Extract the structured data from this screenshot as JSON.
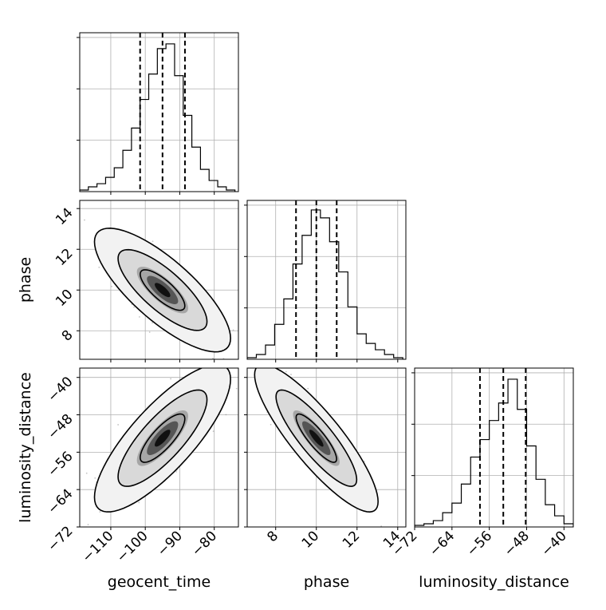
{
  "chart_data": {
    "type": "corner",
    "parameters": [
      "geocent_time",
      "phase",
      "luminosity_distance"
    ],
    "axis_labels": {
      "x": [
        "geocent_time",
        "phase",
        "luminosity_distance"
      ],
      "y": [
        "",
        "phase",
        "luminosity_distance"
      ]
    },
    "ranges": {
      "geocent_time": [
        -119,
        -73
      ],
      "phase": [
        6.6,
        14.4
      ],
      "luminosity_distance": [
        -72,
        -38
      ]
    },
    "ticks": {
      "geocent_time": [
        -110,
        -100,
        -90,
        -80
      ],
      "phase": [
        8,
        10,
        12,
        14
      ],
      "luminosity_distance": [
        -72,
        -64,
        -56,
        -48,
        -40
      ]
    },
    "tick_labels": {
      "geocent_time": [
        "−110",
        "−100",
        "−90",
        "−80"
      ],
      "phase": [
        "8",
        "10",
        "12",
        "14"
      ],
      "luminosity_distance": [
        "−72",
        "−64",
        "−56",
        "−48",
        "−40"
      ]
    },
    "quantiles": {
      "geocent_time": [
        -101.5,
        -95,
        -88.5
      ],
      "phase": [
        9.0,
        10.0,
        11.0
      ],
      "luminosity_distance": [
        -58,
        -53,
        -48.2
      ]
    },
    "histograms": {
      "geocent_time": {
        "edges": [
          -119,
          -116.5,
          -114,
          -111.5,
          -109,
          -106.5,
          -104,
          -101.5,
          -99,
          -96.5,
          -94,
          -91.5,
          -89,
          -86.5,
          -84,
          -81.5,
          -79,
          -76.5,
          -74
        ],
        "counts": [
          0.01,
          0.03,
          0.05,
          0.09,
          0.15,
          0.26,
          0.4,
          0.58,
          0.74,
          0.9,
          0.93,
          0.73,
          0.48,
          0.28,
          0.14,
          0.07,
          0.03,
          0.01
        ]
      },
      "phase": {
        "edges": [
          6.6,
          7.05,
          7.5,
          7.95,
          8.4,
          8.85,
          9.3,
          9.75,
          10.2,
          10.65,
          11.1,
          11.55,
          12.0,
          12.45,
          12.9,
          13.35,
          13.8,
          14.25
        ],
        "counts": [
          0.01,
          0.03,
          0.09,
          0.22,
          0.38,
          0.6,
          0.78,
          0.94,
          0.89,
          0.74,
          0.55,
          0.33,
          0.16,
          0.1,
          0.06,
          0.03,
          0.01
        ]
      },
      "luminosity_distance": {
        "edges": [
          -72,
          -70,
          -68,
          -66,
          -64,
          -62,
          -60,
          -58,
          -56,
          -54,
          -52,
          -50,
          -48,
          -46,
          -44,
          -42,
          -40,
          -38
        ],
        "counts": [
          0.01,
          0.02,
          0.04,
          0.09,
          0.15,
          0.27,
          0.44,
          0.55,
          0.67,
          0.78,
          0.93,
          0.74,
          0.51,
          0.3,
          0.14,
          0.07,
          0.02
        ]
      }
    },
    "joint": [
      {
        "x": "geocent_time",
        "y": "phase",
        "mean": [
          -95,
          10.0
        ],
        "sd": [
          6.5,
          1.0
        ],
        "rho": -0.78
      },
      {
        "x": "geocent_time",
        "y": "luminosity_distance",
        "mean": [
          -95,
          -53
        ],
        "sd": [
          6.5,
          5.2
        ],
        "rho": 0.8
      },
      {
        "x": "phase",
        "y": "luminosity_distance",
        "mean": [
          10.0,
          -53
        ],
        "sd": [
          1.0,
          5.2
        ],
        "rho": -0.86
      }
    ],
    "contour_levels": [
      0.39,
      0.86,
      0.99
    ],
    "grid": true,
    "colors": {
      "line": "#000000",
      "grid": "#b0b0b0",
      "scatter": "#7f7f7f",
      "dash": "#000000"
    }
  }
}
